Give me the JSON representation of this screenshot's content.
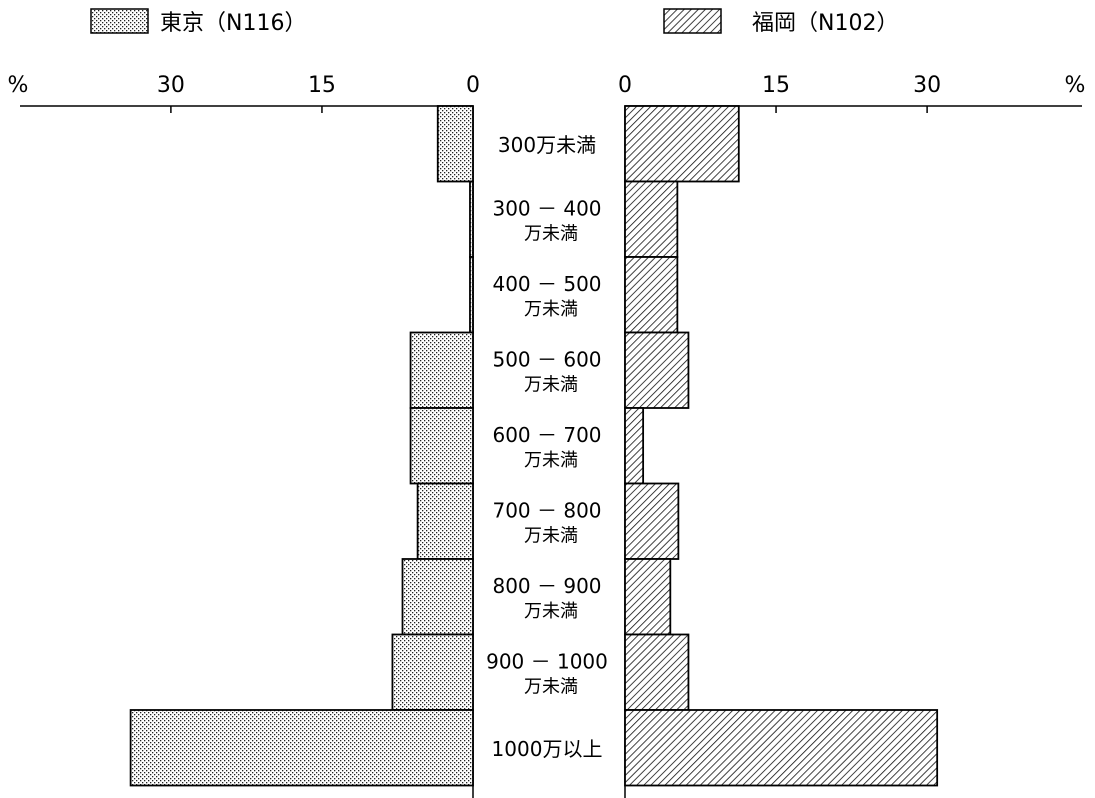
{
  "chart_data": {
    "type": "bar",
    "orientation": "horizontal-butterfly",
    "categories": [
      [
        "300万未満"
      ],
      [
        "300 － 400",
        "万未満"
      ],
      [
        "400 － 500",
        "万未満"
      ],
      [
        "500 － 600",
        "万未満"
      ],
      [
        "600 － 700",
        "万未満"
      ],
      [
        "700 － 800",
        "万未満"
      ],
      [
        "800 － 900",
        "万未満"
      ],
      [
        "900 － 1000",
        "万未満"
      ],
      [
        "1000万以上"
      ]
    ],
    "series": [
      {
        "name": "東京（N116）",
        "side": "left",
        "pattern": "dots",
        "values": [
          3.5,
          0.3,
          0.3,
          6.2,
          6.2,
          5.5,
          7.0,
          8.0,
          34.0
        ]
      },
      {
        "name": "福岡（N102）",
        "side": "right",
        "pattern": "hatch",
        "values": [
          11.3,
          5.2,
          5.2,
          6.3,
          1.8,
          5.3,
          4.5,
          6.3,
          31.0
        ]
      }
    ],
    "axis": {
      "unit_label": "%",
      "ticks": [
        0,
        15,
        30
      ],
      "tick_labels": [
        "0",
        "15",
        "30"
      ],
      "max": 45
    },
    "legend_position": "top",
    "grid": false
  }
}
